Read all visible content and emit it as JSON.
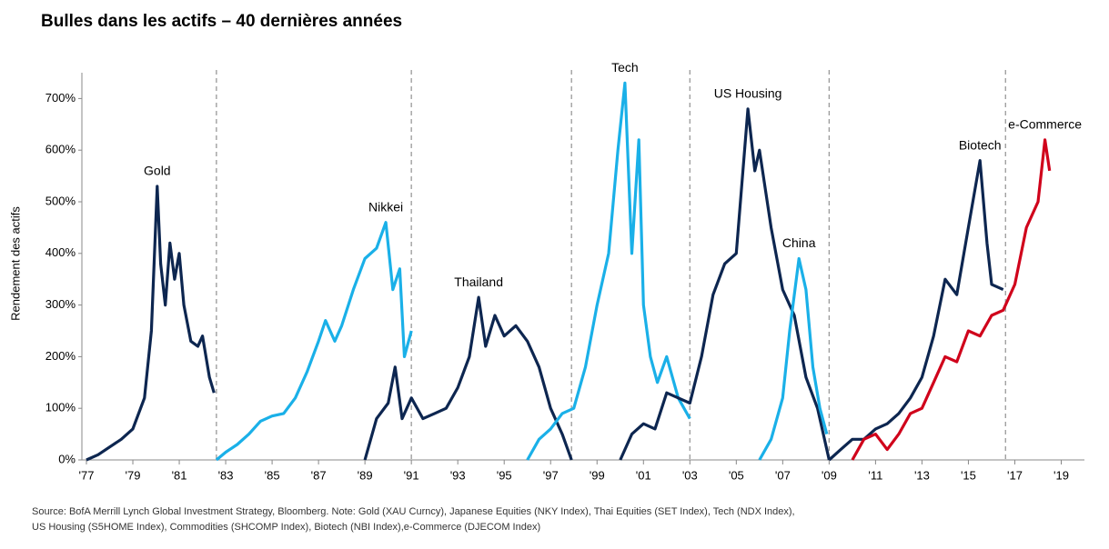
{
  "chart_data": {
    "type": "line",
    "title": "Bulles dans les actifs – 40 dernières années",
    "y_label": "Rendement  des actifs",
    "source": [
      "Source: BofA Merrill Lynch Global Investment Strategy, Bloomberg. Note: Gold (XAU Curncy), Japanese Equities (NKY Index), Thai Equities (SET Index), Tech (NDX Index),",
      "US Housing (S5HOME Index), Commodities (SHCOMP Index), Biotech (NBI Index),e-Commerce (DJECOM Index)"
    ],
    "xlim": [
      1977,
      2020
    ],
    "ylim": [
      0,
      750
    ],
    "xticks": [
      {
        "value": 1977,
        "label": "'77"
      },
      {
        "value": 1979,
        "label": "'79"
      },
      {
        "value": 1981,
        "label": "'81"
      },
      {
        "value": 1983,
        "label": "'83"
      },
      {
        "value": 1985,
        "label": "'85"
      },
      {
        "value": 1987,
        "label": "'87"
      },
      {
        "value": 1989,
        "label": "'89"
      },
      {
        "value": 1991,
        "label": "'91"
      },
      {
        "value": 1993,
        "label": "'93"
      },
      {
        "value": 1995,
        "label": "'95"
      },
      {
        "value": 1997,
        "label": "'97"
      },
      {
        "value": 1999,
        "label": "'99"
      },
      {
        "value": 2001,
        "label": "'01"
      },
      {
        "value": 2003,
        "label": "'03"
      },
      {
        "value": 2005,
        "label": "'05"
      },
      {
        "value": 2007,
        "label": "'07"
      },
      {
        "value": 2009,
        "label": "'09"
      },
      {
        "value": 2011,
        "label": "'11"
      },
      {
        "value": 2013,
        "label": "'13"
      },
      {
        "value": 2015,
        "label": "'15"
      },
      {
        "value": 2017,
        "label": "'17"
      },
      {
        "value": 2019,
        "label": "'19"
      }
    ],
    "yticks": [
      {
        "value": 0,
        "label": "0%"
      },
      {
        "value": 100,
        "label": "100%"
      },
      {
        "value": 200,
        "label": "200%"
      },
      {
        "value": 300,
        "label": "300%"
      },
      {
        "value": 400,
        "label": "400%"
      },
      {
        "value": 500,
        "label": "500%"
      },
      {
        "value": 600,
        "label": "600%"
      },
      {
        "value": 700,
        "label": "700%"
      }
    ],
    "vlines": [
      1982.6,
      1991,
      1997.9,
      2003,
      2009,
      2016.6
    ],
    "series": [
      {
        "name": "Gold",
        "color": "#0d2650",
        "x": [
          1977,
          1977.5,
          1978,
          1978.5,
          1979,
          1979.5,
          1979.8,
          1980.05,
          1980.2,
          1980.4,
          1980.6,
          1980.8,
          1981,
          1981.2,
          1981.5,
          1981.8,
          1982,
          1982.3,
          1982.5
        ],
        "values": [
          0,
          10,
          25,
          40,
          60,
          120,
          250,
          530,
          380,
          300,
          420,
          350,
          400,
          300,
          230,
          220,
          240,
          160,
          130
        ]
      },
      {
        "name": "Nikkei",
        "color": "#1ab0e8",
        "x": [
          1982.6,
          1983,
          1983.5,
          1984,
          1984.5,
          1985,
          1985.5,
          1986,
          1986.5,
          1987,
          1987.3,
          1987.7,
          1988,
          1988.5,
          1989,
          1989.5,
          1989.9,
          1990.2,
          1990.5,
          1990.7,
          1991
        ],
        "values": [
          0,
          15,
          30,
          50,
          75,
          85,
          90,
          120,
          170,
          230,
          270,
          230,
          260,
          330,
          390,
          410,
          460,
          330,
          370,
          200,
          250
        ]
      },
      {
        "name": "Thailand",
        "color": "#0d2650",
        "x": [
          1989,
          1989.5,
          1990,
          1990.3,
          1990.6,
          1991,
          1991.5,
          1992,
          1992.5,
          1993,
          1993.5,
          1993.9,
          1994.2,
          1994.6,
          1995,
          1995.5,
          1996,
          1996.5,
          1997,
          1997.5,
          1997.9
        ],
        "values": [
          0,
          80,
          110,
          180,
          80,
          120,
          80,
          90,
          100,
          140,
          200,
          315,
          220,
          280,
          240,
          260,
          230,
          180,
          100,
          50,
          0
        ]
      },
      {
        "name": "Tech",
        "color": "#1ab0e8",
        "x": [
          1996,
          1996.5,
          1997,
          1997.5,
          1998,
          1998.5,
          1999,
          1999.5,
          1999.9,
          2000.2,
          2000.5,
          2000.8,
          2001,
          2001.3,
          2001.6,
          2002,
          2002.5,
          2003
        ],
        "values": [
          0,
          40,
          60,
          90,
          100,
          180,
          300,
          400,
          600,
          730,
          400,
          620,
          300,
          200,
          150,
          200,
          120,
          80
        ]
      },
      {
        "name": "US Housing",
        "color": "#0d2650",
        "x": [
          2000,
          2000.5,
          2001,
          2001.5,
          2002,
          2002.5,
          2003,
          2003.5,
          2004,
          2004.5,
          2005,
          2005.5,
          2005.8,
          2006,
          2006.5,
          2007,
          2007.5,
          2008,
          2008.5,
          2009
        ],
        "values": [
          0,
          50,
          70,
          60,
          130,
          120,
          110,
          200,
          320,
          380,
          400,
          680,
          560,
          600,
          450,
          330,
          280,
          160,
          100,
          0
        ]
      },
      {
        "name": "China",
        "color": "#1ab0e8",
        "x": [
          2006,
          2006.5,
          2007,
          2007.3,
          2007.7,
          2008,
          2008.3,
          2008.6,
          2008.9
        ],
        "values": [
          0,
          40,
          120,
          250,
          390,
          330,
          180,
          100,
          50
        ]
      },
      {
        "name": "Biotech",
        "color": "#0d2650",
        "x": [
          2009,
          2009.5,
          2010,
          2010.5,
          2011,
          2011.5,
          2012,
          2012.5,
          2013,
          2013.5,
          2014,
          2014.5,
          2015,
          2015.5,
          2015.8,
          2016,
          2016.5
        ],
        "values": [
          0,
          20,
          40,
          40,
          60,
          70,
          90,
          120,
          160,
          240,
          350,
          320,
          450,
          580,
          420,
          340,
          330
        ]
      },
      {
        "name": "e-Commerce",
        "color": "#d0021b",
        "x": [
          2010,
          2010.5,
          2011,
          2011.5,
          2012,
          2012.5,
          2013,
          2013.5,
          2014,
          2014.5,
          2015,
          2015.5,
          2016,
          2016.5,
          2017,
          2017.5,
          2018,
          2018.3,
          2018.5
        ],
        "values": [
          0,
          40,
          50,
          20,
          50,
          90,
          100,
          150,
          200,
          190,
          250,
          240,
          280,
          290,
          340,
          450,
          500,
          620,
          560
        ]
      }
    ]
  }
}
